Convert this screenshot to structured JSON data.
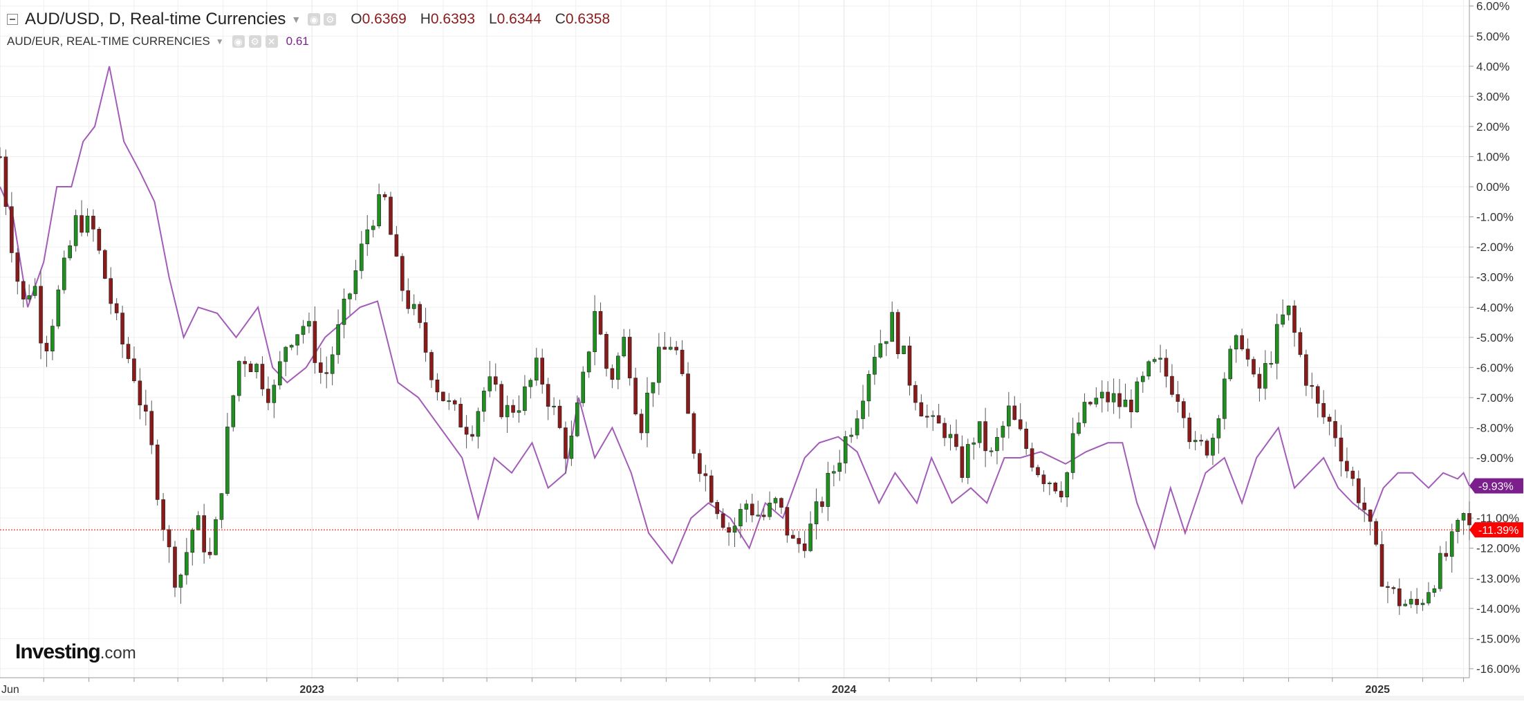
{
  "legend": {
    "main_title": "AUD/USD, D, Real-time Currencies",
    "ohlc": [
      {
        "key": "O",
        "value": "0.6369"
      },
      {
        "key": "H",
        "value": "0.6393"
      },
      {
        "key": "L",
        "value": "0.6344"
      },
      {
        "key": "C",
        "value": "0.6358"
      }
    ],
    "compare_title": "AUD/EUR, REAL-TIME CURRENCIES",
    "compare_value": "0.61"
  },
  "logo": {
    "name": "Investing",
    "suffix": ".com"
  },
  "colors": {
    "up": "#1f8f1f",
    "down": "#8b1a1a",
    "compare_line": "#a35bb8",
    "last_price_badge": "#ff0000",
    "compare_badge": "#7a1f8c",
    "grid": "#efefef"
  },
  "chart_data": {
    "type": "line",
    "title": "AUD/USD, D, Real-time Currencies",
    "y_unit": "% change",
    "y_range": [
      -16.3,
      6.2
    ],
    "y_ticks": [
      "6.00%",
      "5.00%",
      "4.00%",
      "3.00%",
      "2.00%",
      "1.00%",
      "0.00%",
      "-1.00%",
      "-2.00%",
      "-3.00%",
      "-4.00%",
      "-5.00%",
      "-6.00%",
      "-7.00%",
      "-8.00%",
      "-9.00%",
      "-10.00%",
      "-11.00%",
      "-12.00%",
      "-13.00%",
      "-14.00%",
      "-15.00%",
      "-16.00%"
    ],
    "x_range": [
      "2022-06-01",
      "2025-03-05"
    ],
    "x_ticks": [
      {
        "label": "Jun",
        "date": "2022-06-01"
      },
      {
        "label": "2023",
        "date": "2023-01-01"
      },
      {
        "label": "2024",
        "date": "2024-01-01"
      },
      {
        "label": "2025",
        "date": "2025-01-01"
      }
    ],
    "minor_gridlines": [
      "2022-07-01",
      "2022-08-01",
      "2022-09-01",
      "2022-10-01",
      "2022-11-01",
      "2022-12-01",
      "2023-02-01",
      "2023-03-01",
      "2023-04-01",
      "2023-05-01",
      "2023-06-01",
      "2023-07-01",
      "2023-08-01",
      "2023-09-01",
      "2023-10-01",
      "2023-11-01",
      "2023-12-01",
      "2024-02-01",
      "2024-03-01",
      "2024-04-01",
      "2024-05-01",
      "2024-06-01",
      "2024-07-01",
      "2024-08-01",
      "2024-09-01",
      "2024-10-01",
      "2024-11-01",
      "2024-12-01",
      "2025-02-01",
      "2025-03-01"
    ],
    "grid": true,
    "series": [
      {
        "name": "AUD/USD",
        "style": "candlestick",
        "x": [
          "2022-06-01",
          "2022-06-08",
          "2022-06-16",
          "2022-06-24",
          "2022-07-01",
          "2022-07-14",
          "2022-07-24",
          "2022-08-04",
          "2022-08-12",
          "2022-08-22",
          "2022-08-31",
          "2022-09-12",
          "2022-09-24",
          "2022-10-01",
          "2022-10-13",
          "2022-10-24",
          "2022-11-06",
          "2022-11-13",
          "2022-11-24",
          "2022-12-05",
          "2022-12-15",
          "2022-12-28",
          "2023-01-09",
          "2023-01-18",
          "2023-02-02",
          "2023-02-10",
          "2023-02-20",
          "2023-03-01",
          "2023-03-14",
          "2023-03-27",
          "2023-04-07",
          "2023-04-20",
          "2023-05-01",
          "2023-05-14",
          "2023-05-26",
          "2023-06-05",
          "2023-06-16",
          "2023-06-26",
          "2023-07-06",
          "2023-07-14",
          "2023-07-24",
          "2023-08-04",
          "2023-08-14",
          "2023-08-24",
          "2023-09-06",
          "2023-09-19",
          "2023-10-01",
          "2023-10-15",
          "2023-10-26",
          "2023-11-06",
          "2023-11-16",
          "2023-11-28",
          "2023-12-08",
          "2023-12-28",
          "2024-01-09",
          "2024-01-21",
          "2024-02-03",
          "2024-02-16",
          "2024-03-01",
          "2024-03-11",
          "2024-03-21",
          "2024-04-01",
          "2024-04-11",
          "2024-04-23",
          "2024-05-03",
          "2024-05-15",
          "2024-05-31",
          "2024-06-08",
          "2024-06-18",
          "2024-07-01",
          "2024-07-11",
          "2024-07-19",
          "2024-07-30",
          "2024-08-05",
          "2024-08-20",
          "2024-08-28",
          "2024-09-09",
          "2024-09-19",
          "2024-09-30",
          "2024-10-10",
          "2024-10-20",
          "2024-10-31",
          "2024-11-11",
          "2024-11-22",
          "2024-12-02",
          "2024-12-12",
          "2024-12-22",
          "2025-01-01",
          "2025-01-10",
          "2025-01-18",
          "2025-01-27",
          "2025-02-08",
          "2025-02-20",
          "2025-03-01",
          "2025-03-05"
        ],
        "values": [
          1.0,
          -1.5,
          -4.0,
          -3.0,
          -5.5,
          -3.0,
          -1.0,
          -1.5,
          -3.0,
          -5.0,
          -6.0,
          -8.5,
          -12.0,
          -13.2,
          -11.0,
          -12.5,
          -7.5,
          -5.5,
          -6.0,
          -7.0,
          -5.0,
          -4.5,
          -6.5,
          -5.0,
          -2.5,
          -1.0,
          -0.5,
          -3.0,
          -4.5,
          -6.5,
          -7.5,
          -8.0,
          -6.5,
          -7.5,
          -7.0,
          -6.0,
          -7.5,
          -9.0,
          -6.5,
          -4.0,
          -6.5,
          -5.0,
          -8.0,
          -6.0,
          -5.0,
          -8.5,
          -10.0,
          -11.5,
          -10.5,
          -11.0,
          -10.5,
          -12.0,
          -11.5,
          -9.0,
          -7.5,
          -5.5,
          -4.5,
          -6.5,
          -8.0,
          -8.0,
          -9.5,
          -8.0,
          -9.0,
          -7.5,
          -8.5,
          -9.5,
          -10.0,
          -8.0,
          -7.2,
          -7.0,
          -7.3,
          -7.0,
          -6.0,
          -6.0,
          -7.0,
          -8.8,
          -8.5,
          -6.0,
          -5.0,
          -7.0,
          -5.5,
          -4.0,
          -6.0,
          -7.5,
          -8.0,
          -9.5,
          -10.5,
          -12.5,
          -13.5,
          -13.8,
          -14.0,
          -13.0,
          -12.0,
          -11.0,
          -11.39
        ]
      },
      {
        "name": "AUD/EUR",
        "style": "line",
        "x": [
          "2022-06-01",
          "2022-06-10",
          "2022-06-20",
          "2022-07-01",
          "2022-07-10",
          "2022-07-20",
          "2022-07-28",
          "2022-08-05",
          "2022-08-15",
          "2022-08-25",
          "2022-09-05",
          "2022-09-15",
          "2022-09-25",
          "2022-10-05",
          "2022-10-15",
          "2022-10-28",
          "2022-11-10",
          "2022-11-25",
          "2022-12-05",
          "2022-12-15",
          "2022-12-28",
          "2023-01-10",
          "2023-01-22",
          "2023-02-03",
          "2023-02-15",
          "2023-03-01",
          "2023-03-15",
          "2023-03-30",
          "2023-04-14",
          "2023-04-25",
          "2023-05-06",
          "2023-05-18",
          "2023-06-01",
          "2023-06-12",
          "2023-06-24",
          "2023-07-03",
          "2023-07-14",
          "2023-07-26",
          "2023-08-08",
          "2023-08-20",
          "2023-09-05",
          "2023-09-18",
          "2023-09-30",
          "2023-10-15",
          "2023-10-28",
          "2023-11-08",
          "2023-11-20",
          "2023-12-05",
          "2023-12-15",
          "2023-12-28",
          "2024-01-10",
          "2024-01-25",
          "2024-02-05",
          "2024-02-20",
          "2024-03-01",
          "2024-03-15",
          "2024-03-28",
          "2024-04-08",
          "2024-04-20",
          "2024-05-01",
          "2024-05-15",
          "2024-06-01",
          "2024-06-15",
          "2024-06-30",
          "2024-07-10",
          "2024-07-20",
          "2024-08-01",
          "2024-08-12",
          "2024-08-22",
          "2024-09-05",
          "2024-09-18",
          "2024-09-30",
          "2024-10-10",
          "2024-10-25",
          "2024-11-05",
          "2024-11-15",
          "2024-11-25",
          "2024-12-05",
          "2024-12-15",
          "2024-12-28",
          "2025-01-05",
          "2025-01-15",
          "2025-01-25",
          "2025-02-05",
          "2025-02-15",
          "2025-02-25",
          "2025-03-01",
          "2025-03-05"
        ],
        "values": [
          0.0,
          -1.0,
          -4.0,
          -2.5,
          0.0,
          0.0,
          1.5,
          2.0,
          4.0,
          1.5,
          0.5,
          -0.5,
          -3.0,
          -5.0,
          -4.0,
          -4.2,
          -5.0,
          -4.0,
          -6.0,
          -6.5,
          -6.0,
          -5.0,
          -4.5,
          -4.0,
          -3.8,
          -6.5,
          -7.0,
          -8.0,
          -9.0,
          -11.0,
          -9.0,
          -9.5,
          -8.5,
          -10.0,
          -9.5,
          -7.0,
          -9.0,
          -8.0,
          -9.5,
          -11.5,
          -12.5,
          -11.0,
          -10.5,
          -11.0,
          -12.0,
          -10.5,
          -11.0,
          -9.0,
          -8.5,
          -8.3,
          -8.8,
          -10.5,
          -9.5,
          -10.5,
          -9.0,
          -10.5,
          -10.0,
          -10.5,
          -9.0,
          -9.0,
          -8.8,
          -9.2,
          -8.8,
          -8.5,
          -8.5,
          -10.5,
          -12.0,
          -10.0,
          -11.5,
          -9.5,
          -9.0,
          -10.5,
          -9.0,
          -8.0,
          -10.0,
          -9.5,
          -9.0,
          -10.0,
          -10.5,
          -11.0,
          -10.0,
          -9.5,
          -9.5,
          -10.0,
          -9.5,
          -9.7,
          -9.5,
          -9.93
        ]
      }
    ],
    "last_price": {
      "label": "-11.39%",
      "value": -11.39
    },
    "compare_last": {
      "label": "-9.93%",
      "value": -9.93
    }
  }
}
